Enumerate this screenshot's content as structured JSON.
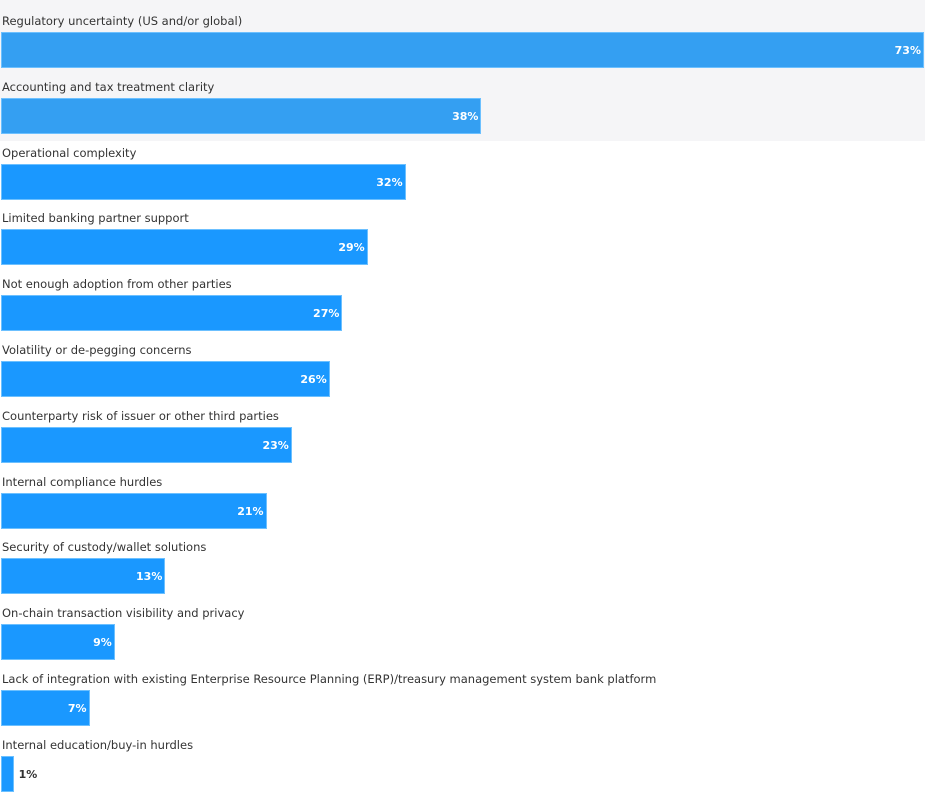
{
  "chart_data": {
    "type": "bar",
    "orientation": "horizontal",
    "categories": [
      "Regulatory uncertainty (US and/or global)",
      "Accounting and tax treatment clarity",
      "Operational complexity",
      "Limited banking partner support",
      "Not enough adoption from other parties",
      "Volatility or de-pegging concerns",
      "Counterparty risk of issuer or other third parties",
      "Internal compliance hurdles",
      "Security of custody/wallet solutions",
      "On-chain transaction visibility and privacy",
      "Lack of integration with existing Enterprise Resource Planning (ERP)/treasury management system bank platform",
      "Internal education/buy-in hurdles"
    ],
    "values": [
      73,
      38,
      32,
      29,
      27,
      26,
      23,
      21,
      13,
      9,
      7,
      1
    ],
    "value_labels": [
      "73%",
      "38%",
      "32%",
      "29%",
      "27%",
      "26%",
      "23%",
      "21%",
      "13%",
      "9%",
      "7%",
      "1%"
    ],
    "unit": "%",
    "xlim": [
      0,
      73
    ],
    "grid": false,
    "highlighted_rows": [
      0,
      1
    ],
    "colors": {
      "bar": "#1a98ff",
      "bar_highlighted": "#349ff2",
      "highlight_bg": "#f5f5f7",
      "label_inside": "#ffffff",
      "label_outside": "#333333"
    }
  }
}
